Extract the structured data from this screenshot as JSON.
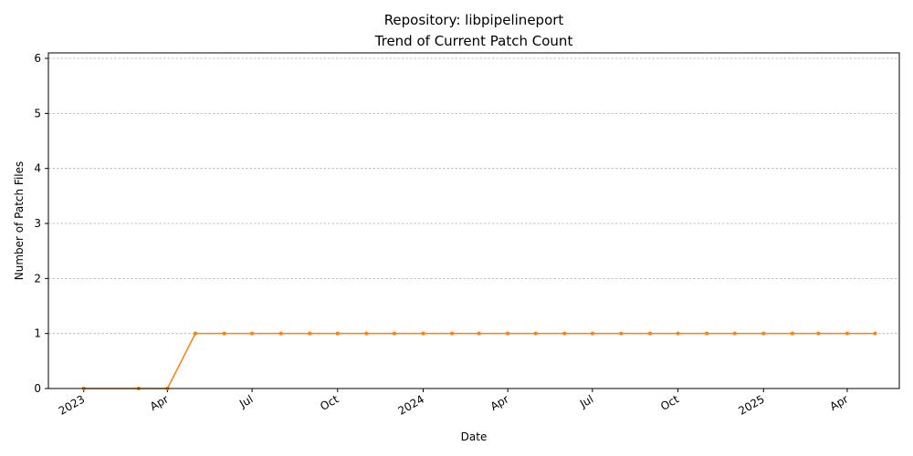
{
  "chart_data": {
    "type": "line",
    "title": "Repository: libpipelineport",
    "subtitle": "Trend of Current Patch Count",
    "xlabel": "Date",
    "ylabel": "Number of Patch Files",
    "ylim": [
      0,
      6.1
    ],
    "xlim": [
      "2022-11-24",
      "2025-05-27"
    ],
    "grid": "horizontal dashed",
    "line_color": "#ff7f0e",
    "y_ticks": [
      0,
      1,
      2,
      3,
      4,
      5,
      6
    ],
    "x_ticks": [
      {
        "date": "2023-01-01",
        "label": "2023"
      },
      {
        "date": "2023-04-01",
        "label": "Apr"
      },
      {
        "date": "2023-07-01",
        "label": "Jul"
      },
      {
        "date": "2023-10-01",
        "label": "Oct"
      },
      {
        "date": "2024-01-01",
        "label": "2024"
      },
      {
        "date": "2024-04-01",
        "label": "Apr"
      },
      {
        "date": "2024-07-01",
        "label": "Jul"
      },
      {
        "date": "2024-10-01",
        "label": "Oct"
      },
      {
        "date": "2025-01-01",
        "label": "2025"
      },
      {
        "date": "2025-04-01",
        "label": "Apr"
      }
    ],
    "series": [
      {
        "x": [
          "2023-01-01",
          "2023-03-01",
          "2023-04-01",
          "2023-05-01",
          "2023-06-01",
          "2023-07-01",
          "2023-08-01",
          "2023-09-01",
          "2023-10-01",
          "2023-11-01",
          "2023-12-01",
          "2024-01-01",
          "2024-02-01",
          "2024-03-01",
          "2024-04-01",
          "2024-05-01",
          "2024-06-01",
          "2024-07-01",
          "2024-08-01",
          "2024-09-01",
          "2024-10-01",
          "2024-11-01",
          "2024-12-01",
          "2025-01-01",
          "2025-02-01",
          "2025-03-01",
          "2025-04-01",
          "2025-05-01"
        ],
        "values": [
          0,
          0,
          0,
          1,
          1,
          1,
          1,
          1,
          1,
          1,
          1,
          1,
          1,
          1,
          1,
          1,
          1,
          1,
          1,
          1,
          1,
          1,
          1,
          1,
          1,
          1,
          1,
          1
        ]
      }
    ]
  }
}
